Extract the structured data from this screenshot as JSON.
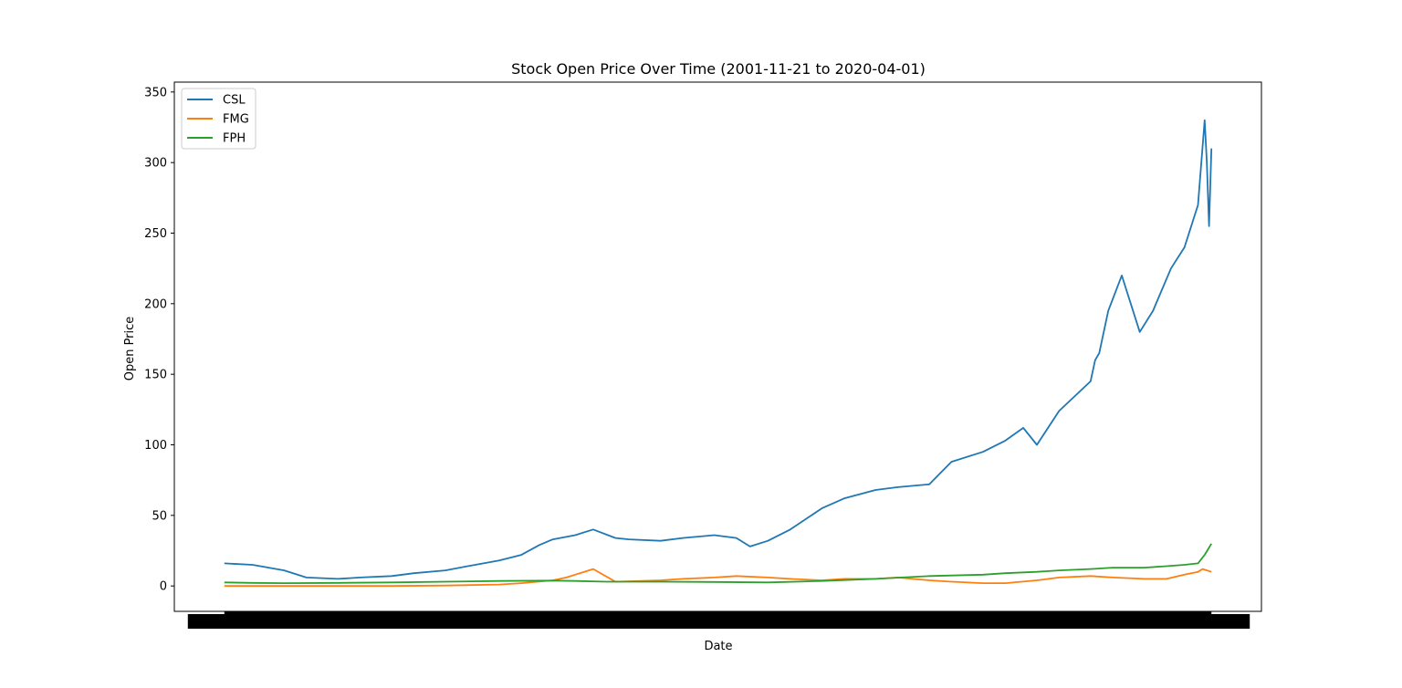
{
  "chart_data": {
    "type": "line",
    "title": "Stock Open Price Over Time (2001-11-21 to 2020-04-01)",
    "xlabel": "Date",
    "ylabel": "Open Price",
    "xlim": [
      "2001-11-21",
      "2020-04-01"
    ],
    "ylim": [
      -18,
      357
    ],
    "yticks": [
      0,
      50,
      100,
      150,
      200,
      250,
      300,
      350
    ],
    "xticks_note": "dense overlapping date tick labels rendered as a solid black band",
    "grid": false,
    "legend_position": "top-left",
    "series": [
      {
        "name": "CSL",
        "color": "#1f77b4",
        "x": [
          "2001-11-21",
          "2002-06-01",
          "2003-01-01",
          "2003-06-01",
          "2004-01-01",
          "2004-06-01",
          "2005-01-01",
          "2005-06-01",
          "2006-01-01",
          "2006-06-01",
          "2007-01-01",
          "2007-06-01",
          "2007-10-01",
          "2008-01-01",
          "2008-06-01",
          "2008-10-01",
          "2009-03-01",
          "2009-06-01",
          "2010-01-01",
          "2010-06-01",
          "2011-01-01",
          "2011-06-01",
          "2011-09-01",
          "2012-01-01",
          "2012-06-01",
          "2013-01-01",
          "2013-06-01",
          "2014-01-01",
          "2014-06-01",
          "2015-01-01",
          "2015-06-01",
          "2016-01-01",
          "2016-06-01",
          "2016-10-01",
          "2017-01-01",
          "2017-06-01",
          "2018-01-01",
          "2018-02-01",
          "2018-03-01",
          "2018-05-01",
          "2018-08-01",
          "2018-12-01",
          "2019-03-01",
          "2019-07-01",
          "2019-10-01",
          "2020-01-01",
          "2020-02-15",
          "2020-03-01",
          "2020-03-16",
          "2020-04-01"
        ],
        "values": [
          16,
          15,
          11,
          6,
          5,
          6,
          7,
          9,
          11,
          14,
          18,
          22,
          29,
          33,
          36,
          40,
          34,
          33,
          32,
          34,
          36,
          34,
          28,
          32,
          40,
          55,
          62,
          68,
          70,
          72,
          88,
          95,
          103,
          112,
          100,
          124,
          145,
          160,
          165,
          195,
          220,
          180,
          195,
          225,
          240,
          270,
          330,
          300,
          255,
          310
        ]
      },
      {
        "name": "FMG",
        "color": "#ff7f0e",
        "x": [
          "2001-11-21",
          "2003-01-01",
          "2004-01-01",
          "2005-01-01",
          "2006-01-01",
          "2007-01-01",
          "2007-06-01",
          "2008-01-01",
          "2008-04-01",
          "2008-06-01",
          "2008-10-01",
          "2009-03-01",
          "2010-01-01",
          "2010-06-01",
          "2011-01-01",
          "2011-06-01",
          "2012-01-01",
          "2012-06-01",
          "2013-01-01",
          "2013-06-01",
          "2014-01-01",
          "2014-06-01",
          "2015-01-01",
          "2015-06-01",
          "2016-01-01",
          "2016-06-01",
          "2017-01-01",
          "2017-06-01",
          "2018-01-01",
          "2018-06-01",
          "2019-01-01",
          "2019-06-01",
          "2019-10-01",
          "2020-01-01",
          "2020-02-01",
          "2020-04-01"
        ],
        "values": [
          0,
          0,
          0,
          0,
          0.3,
          1,
          2,
          4,
          6,
          8,
          12,
          3,
          4,
          5,
          6,
          7,
          6,
          5,
          4,
          5,
          5,
          6,
          4,
          3,
          2,
          2,
          4,
          6,
          7,
          6,
          5,
          5,
          8,
          10,
          12,
          10
        ]
      },
      {
        "name": "FPH",
        "color": "#2ca02c",
        "x": [
          "2001-11-21",
          "2002-06-01",
          "2003-01-01",
          "2004-01-01",
          "2005-01-01",
          "2006-01-01",
          "2007-01-01",
          "2008-01-01",
          "2008-06-01",
          "2009-01-01",
          "2010-01-01",
          "2011-01-01",
          "2012-01-01",
          "2013-01-01",
          "2014-01-01",
          "2015-01-01",
          "2016-01-01",
          "2016-06-01",
          "2017-01-01",
          "2017-06-01",
          "2018-01-01",
          "2018-06-01",
          "2019-01-01",
          "2019-06-01",
          "2019-10-01",
          "2020-01-01",
          "2020-02-15",
          "2020-04-01"
        ],
        "values": [
          2.5,
          2.2,
          2.0,
          2.2,
          2.5,
          3.0,
          3.5,
          3.8,
          3.5,
          3.0,
          3.0,
          2.8,
          2.5,
          3.5,
          5,
          7,
          8,
          9,
          10,
          11,
          12,
          13,
          13,
          14,
          15,
          16,
          22,
          30
        ]
      }
    ]
  }
}
